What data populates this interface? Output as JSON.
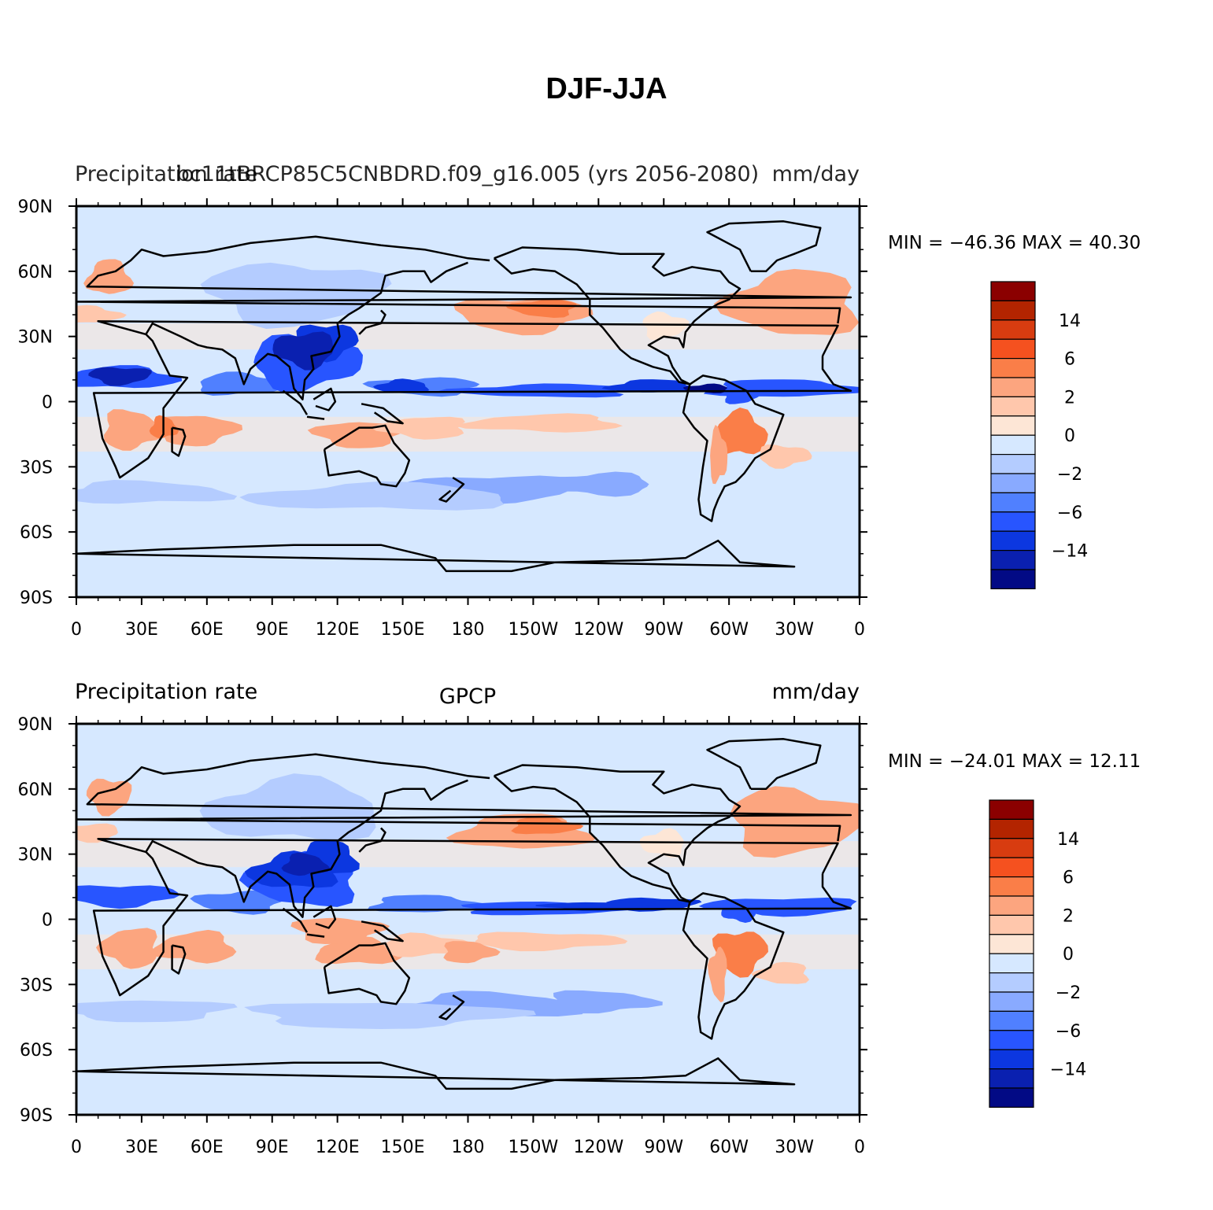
{
  "title": "DJF-JJA",
  "axes": {
    "lat_labels": [
      "90N",
      "60N",
      "30N",
      "0",
      "30S",
      "60S",
      "90S"
    ],
    "lon_labels": [
      "0",
      "30E",
      "60E",
      "90E",
      "120E",
      "150E",
      "180",
      "150W",
      "120W",
      "90W",
      "60W",
      "30W",
      "0"
    ]
  },
  "colorbar_labels": [
    "14",
    "6",
    "2",
    "0",
    "−2",
    "−6",
    "−14"
  ],
  "colors": {
    "levels": [
      "#8b0000",
      "#b32400",
      "#d83c10",
      "#f5511f",
      "#fa7e48",
      "#fca57f",
      "#ffc7ac",
      "#fde6d6",
      "#d6e8ff",
      "#b4ccff",
      "#89aaff",
      "#5080ff",
      "#2855ff",
      "#0c37e0",
      "#0a20b0",
      "#020a85"
    ],
    "land_outline": "#000000"
  },
  "panels": [
    {
      "left_label": "Precipitation rate",
      "center_label": "bc11tBRCP85C5CNBDRD.f09_g16.005 (yrs 2056-2080)",
      "right_label": "mm/day",
      "stats": "MIN = −46.36  MAX =   40.30"
    },
    {
      "left_label": "Precipitation rate",
      "center_label": "GPCP",
      "right_label": "mm/day",
      "stats": "MIN = −24.01  MAX =   12.11"
    }
  ]
}
